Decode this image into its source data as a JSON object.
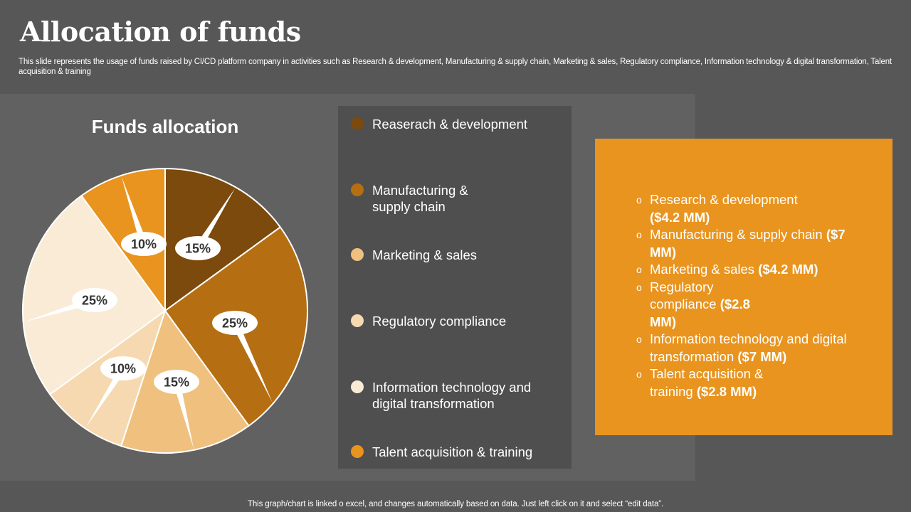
{
  "slide": {
    "title": "Allocation of funds",
    "subtitle": "This slide represents the usage of funds raised by CI/CD platform company in activities such as Research & development, Manufacturing & supply chain, Marketing & sales, Regulatory compliance, Information technology & digital transformation, Talent acquisition & training",
    "footer": "This graph/chart is linked o excel, and changes automatically based on data. Just left click on it and select “edit data”."
  },
  "chart_data": {
    "type": "pie",
    "title": "Funds allocation",
    "categories": [
      "Reaserach & development",
      "Manufacturing & supply chain",
      "Marketing & sales",
      "Regulatory compliance",
      "Information technology and digital transformation",
      "Talent acquisition & training"
    ],
    "values": [
      15,
      25,
      15,
      10,
      25,
      10
    ],
    "data_labels": [
      "15%",
      "25%",
      "15%",
      "10%",
      "25%",
      "10%"
    ],
    "colors": [
      "#7b4a0c",
      "#b56e12",
      "#f0c07e",
      "#f6d9b0",
      "#faebd7",
      "#e8941f"
    ],
    "legend_position": "right"
  },
  "legend": {
    "items": [
      {
        "label": "Reaserach & development",
        "color": "#7b4a0c"
      },
      {
        "label": "Manufacturing & supply chain",
        "color": "#b56e12"
      },
      {
        "label": "Marketing & sales",
        "color": "#f0c07e"
      },
      {
        "label": "Regulatory compliance",
        "color": "#f6d9b0"
      },
      {
        "label": "Information technology and digital transformation",
        "color": "#faebd7"
      },
      {
        "label": "Talent acquisition & training",
        "color": "#e8941f"
      }
    ]
  },
  "info_box": {
    "bullet": "o",
    "items": [
      {
        "text": "Research & development",
        "amount": "($4.2 MM)"
      },
      {
        "text": "Manufacturing & supply chain",
        "amount": "($7 MM)"
      },
      {
        "text": "Marketing & sales",
        "amount": "($4.2 MM)"
      },
      {
        "text": "Regulatory compliance",
        "amount": "($2.8 MM)"
      },
      {
        "text": "Information technology and digital transformation",
        "amount": "($7 MM)"
      },
      {
        "text": "Talent acquisition & training",
        "amount": "($2.8 MM)"
      }
    ]
  },
  "colors": {
    "background": "#575757",
    "chart_panel": "#616161",
    "legend_panel": "#4f4f4f",
    "accent": "#e8941f"
  }
}
